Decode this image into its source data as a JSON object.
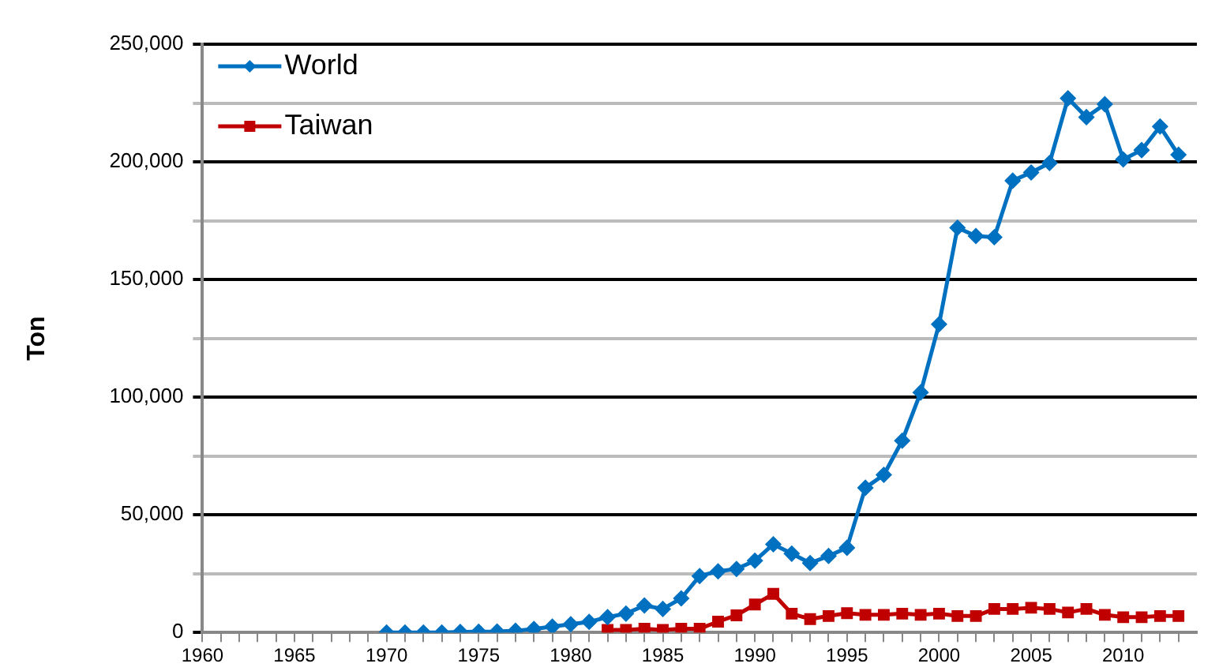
{
  "chart_data": {
    "type": "line",
    "ylabel": "Ton",
    "xlim": [
      1960,
      2014
    ],
    "xticks": [
      1960,
      {
        "value": 1961,
        "label": null
      },
      {
        "value": 1962,
        "label": null
      },
      {
        "value": 1963,
        "label": null
      },
      {
        "value": 1964,
        "label": null
      },
      1965,
      {
        "value": 1966,
        "label": null
      },
      {
        "value": 1967,
        "label": null
      },
      {
        "value": 1968,
        "label": null
      },
      {
        "value": 1969,
        "label": null
      },
      1970,
      {
        "value": 1971,
        "label": null
      },
      {
        "value": 1972,
        "label": null
      },
      {
        "value": 1973,
        "label": null
      },
      {
        "value": 1974,
        "label": null
      },
      1975,
      {
        "value": 1976,
        "label": null
      },
      {
        "value": 1977,
        "label": null
      },
      {
        "value": 1978,
        "label": null
      },
      {
        "value": 1979,
        "label": null
      },
      1980,
      {
        "value": 1981,
        "label": null
      },
      {
        "value": 1982,
        "label": null
      },
      {
        "value": 1983,
        "label": null
      },
      {
        "value": 1984,
        "label": null
      },
      1985,
      {
        "value": 1986,
        "label": null
      },
      {
        "value": 1987,
        "label": null
      },
      {
        "value": 1988,
        "label": null
      },
      {
        "value": 1989,
        "label": null
      },
      1990,
      {
        "value": 1991,
        "label": null
      },
      {
        "value": 1992,
        "label": null
      },
      {
        "value": 1993,
        "label": null
      },
      {
        "value": 1994,
        "label": null
      },
      1995,
      {
        "value": 1996,
        "label": null
      },
      {
        "value": 1997,
        "label": null
      },
      {
        "value": 1998,
        "label": null
      },
      {
        "value": 1999,
        "label": null
      },
      2000,
      {
        "value": 2001,
        "label": null
      },
      {
        "value": 2002,
        "label": null
      },
      {
        "value": 2003,
        "label": null
      },
      {
        "value": 2004,
        "label": null
      },
      2005,
      {
        "value": 2006,
        "label": null
      },
      {
        "value": 2007,
        "label": null
      },
      {
        "value": 2008,
        "label": null
      },
      {
        "value": 2009,
        "label": null
      },
      2010,
      {
        "value": 2011,
        "label": null
      },
      {
        "value": 2012,
        "label": null
      },
      {
        "value": 2013,
        "label": null
      }
    ],
    "ylim": [
      0,
      250000
    ],
    "yticks": [
      {
        "value": 0,
        "label": "0"
      },
      {
        "value": 25000,
        "label": null
      },
      {
        "value": 50000,
        "label": "50,000"
      },
      {
        "value": 75000,
        "label": null
      },
      {
        "value": 100000,
        "label": "100,000"
      },
      {
        "value": 125000,
        "label": null
      },
      {
        "value": 150000,
        "label": "150,000"
      },
      {
        "value": 175000,
        "label": null
      },
      {
        "value": 200000,
        "label": "200,000"
      },
      {
        "value": 225000,
        "label": null
      },
      {
        "value": 250000,
        "label": "250,000"
      }
    ],
    "grid": "y",
    "legend": "top left",
    "series": [
      {
        "name": "World",
        "color": "#0070c0",
        "marker": "diamond",
        "x": [
          1970,
          1971,
          1972,
          1973,
          1974,
          1975,
          1976,
          1977,
          1978,
          1979,
          1980,
          1981,
          1982,
          1983,
          1984,
          1985,
          1986,
          1987,
          1988,
          1989,
          1990,
          1991,
          1992,
          1993,
          1994,
          1995,
          1996,
          1997,
          1998,
          1999,
          2000,
          2001,
          2002,
          2003,
          2004,
          2005,
          2006,
          2007,
          2008,
          2009,
          2010,
          2011,
          2012,
          2013
        ],
        "values": [
          0,
          0,
          0,
          0,
          200,
          300,
          400,
          700,
          1500,
          2500,
          3500,
          4500,
          6500,
          8000,
          11500,
          10000,
          14500,
          24000,
          26000,
          27000,
          30500,
          37500,
          33500,
          29500,
          32500,
          36000,
          61500,
          67000,
          81500,
          102000,
          131000,
          172000,
          168500,
          168000,
          192000,
          195500,
          199500,
          227000,
          219000,
          224500,
          201000,
          205000,
          215000,
          203000
        ]
      },
      {
        "name": "Taiwan",
        "color": "#c00000",
        "marker": "square",
        "x": [
          1982,
          1983,
          1984,
          1985,
          1986,
          1987,
          1988,
          1989,
          1990,
          1991,
          1992,
          1993,
          1994,
          1995,
          1996,
          1997,
          1998,
          1999,
          2000,
          2001,
          2002,
          2003,
          2004,
          2005,
          2006,
          2007,
          2008,
          2009,
          2010,
          2011,
          2012,
          2013
        ],
        "values": [
          1100,
          1100,
          1600,
          1100,
          1600,
          1600,
          4600,
          7300,
          11900,
          16400,
          8000,
          5700,
          7000,
          8200,
          7500,
          7500,
          8000,
          7500,
          8000,
          7000,
          7000,
          10000,
          10000,
          10500,
          10000,
          8500,
          10000,
          7500,
          6500,
          6500,
          7000,
          7000
        ]
      }
    ]
  }
}
